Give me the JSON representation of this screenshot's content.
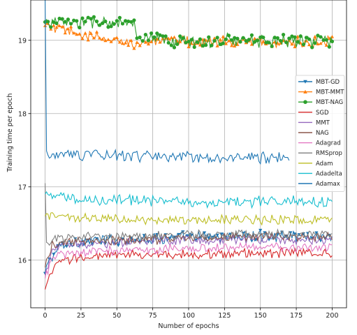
{
  "chart_data": {
    "type": "line",
    "xlabel": "Number of epochs",
    "ylabel": "Training time per epoch",
    "xlim": [
      -10,
      210
    ],
    "ylim": [
      15.35,
      19.55
    ],
    "xticks": [
      0,
      25,
      50,
      75,
      100,
      125,
      150,
      175,
      200
    ],
    "yticks": [
      16,
      17,
      18,
      19
    ],
    "grid": true,
    "legend_position": "right",
    "series": [
      {
        "name": "MBT-GD",
        "color": "#1f77b4",
        "marker": "triangle-down",
        "anchors": [
          [
            0,
            15.82
          ],
          [
            2,
            15.95
          ],
          [
            5,
            16.05
          ],
          [
            10,
            16.18
          ],
          [
            20,
            16.25
          ],
          [
            40,
            16.27
          ],
          [
            80,
            16.3
          ],
          [
            120,
            16.32
          ],
          [
            160,
            16.33
          ],
          [
            200,
            16.33
          ]
        ],
        "noise": 0.06,
        "markevery": 3
      },
      {
        "name": "MBT-MMT",
        "color": "#ff7f0e",
        "marker": "triangle-up",
        "anchors": [
          [
            0,
            19.2
          ],
          [
            10,
            19.15
          ],
          [
            25,
            19.08
          ],
          [
            45,
            19.0
          ],
          [
            63,
            18.97
          ],
          [
            80,
            18.98
          ],
          [
            100,
            18.99
          ],
          [
            130,
            18.98
          ],
          [
            160,
            18.97
          ],
          [
            200,
            18.97
          ]
        ],
        "noise": 0.06,
        "markevery": 2
      },
      {
        "name": "MBT-NAG",
        "color": "#2ca02c",
        "marker": "circle",
        "anchors": [
          [
            0,
            19.25
          ],
          [
            20,
            19.24
          ],
          [
            40,
            19.25
          ],
          [
            62,
            19.22
          ],
          [
            64,
            19.02
          ],
          [
            80,
            19.0
          ],
          [
            100,
            18.98
          ],
          [
            130,
            19.0
          ],
          [
            160,
            19.0
          ],
          [
            200,
            19.0
          ]
        ],
        "noise": 0.07,
        "markevery": 2
      },
      {
        "name": "SGD",
        "color": "#d62728",
        "marker": "none",
        "anchors": [
          [
            0,
            15.6
          ],
          [
            3,
            15.75
          ],
          [
            8,
            15.95
          ],
          [
            20,
            16.03
          ],
          [
            50,
            16.07
          ],
          [
            100,
            16.08
          ],
          [
            150,
            16.1
          ],
          [
            200,
            16.1
          ]
        ],
        "noise": 0.05
      },
      {
        "name": "MMT",
        "color": "#9467bd",
        "marker": "none",
        "anchors": [
          [
            0,
            15.8
          ],
          [
            5,
            16.15
          ],
          [
            20,
            16.22
          ],
          [
            60,
            16.25
          ],
          [
            100,
            16.27
          ],
          [
            150,
            16.28
          ],
          [
            200,
            16.28
          ]
        ],
        "noise": 0.05
      },
      {
        "name": "NAG",
        "color": "#8c564b",
        "marker": "none",
        "anchors": [
          [
            0,
            15.9
          ],
          [
            5,
            16.2
          ],
          [
            20,
            16.25
          ],
          [
            60,
            16.27
          ],
          [
            100,
            16.3
          ],
          [
            150,
            16.32
          ],
          [
            200,
            16.32
          ]
        ],
        "noise": 0.05
      },
      {
        "name": "Adagrad",
        "color": "#e377c2",
        "marker": "none",
        "anchors": [
          [
            0,
            15.75
          ],
          [
            5,
            16.05
          ],
          [
            20,
            16.1
          ],
          [
            60,
            16.14
          ],
          [
            100,
            16.16
          ],
          [
            150,
            16.18
          ],
          [
            200,
            16.18
          ]
        ],
        "noise": 0.05
      },
      {
        "name": "RMSprop",
        "color": "#7f7f7f",
        "marker": "none",
        "anchors": [
          [
            0,
            17.05
          ],
          [
            1,
            16.2
          ],
          [
            5,
            16.28
          ],
          [
            20,
            16.32
          ],
          [
            60,
            16.33
          ],
          [
            100,
            16.34
          ],
          [
            150,
            16.35
          ],
          [
            200,
            16.36
          ]
        ],
        "noise": 0.05
      },
      {
        "name": "Adam",
        "color": "#bcbd22",
        "marker": "none",
        "anchors": [
          [
            0,
            16.6
          ],
          [
            20,
            16.58
          ],
          [
            60,
            16.56
          ],
          [
            100,
            16.55
          ],
          [
            150,
            16.55
          ],
          [
            200,
            16.55
          ]
        ],
        "noise": 0.05
      },
      {
        "name": "Adadelta",
        "color": "#17becf",
        "marker": "none",
        "anchors": [
          [
            0,
            16.9
          ],
          [
            20,
            16.82
          ],
          [
            60,
            16.82
          ],
          [
            100,
            16.8
          ],
          [
            150,
            16.8
          ],
          [
            200,
            16.8
          ]
        ],
        "noise": 0.06
      },
      {
        "name": "Adamax",
        "color": "#1f77b4",
        "marker": "none",
        "anchors": [
          [
            0,
            19.6
          ],
          [
            0.3,
            17.4
          ],
          [
            20,
            17.45
          ],
          [
            60,
            17.42
          ],
          [
            100,
            17.4
          ],
          [
            150,
            17.4
          ],
          [
            170,
            17.4
          ]
        ],
        "noise": 0.06
      }
    ]
  }
}
